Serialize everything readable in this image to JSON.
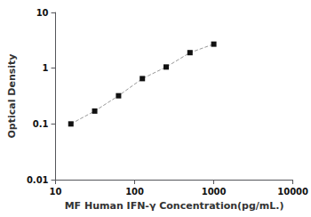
{
  "chart_data": {
    "type": "line",
    "xlabel": "MF Human IFN-γ Concentration(pg/mL.)",
    "ylabel": "Optical Density",
    "x": [
      15.6,
      31.2,
      62.5,
      125,
      250,
      500,
      1000
    ],
    "series": [
      {
        "values": [
          0.1,
          0.17,
          0.32,
          0.65,
          1.05,
          1.9,
          2.7
        ],
        "color": "#111111",
        "marker": "square",
        "line_style": "dashed"
      }
    ],
    "color": "#999999",
    "xlim": [
      10,
      10000
    ],
    "ylim": [
      0.01,
      10
    ],
    "xticks": [
      10,
      100,
      1000,
      10000
    ],
    "yticks": [
      0.01,
      0.1,
      1,
      10
    ],
    "log": true,
    "grid": false
  }
}
